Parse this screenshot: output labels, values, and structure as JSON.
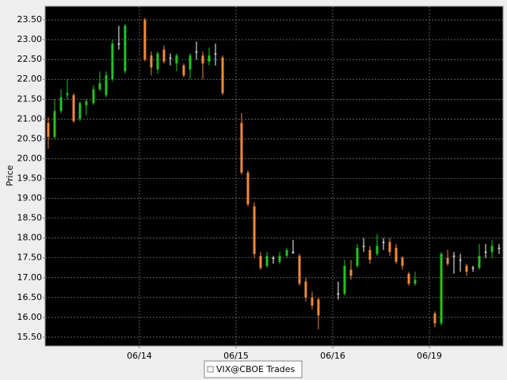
{
  "chart_data": {
    "type": "candlestick",
    "y_label": "Price",
    "series_name": "VIX@CBOE Trades",
    "up_color": "#22c322",
    "down_color": "#f08a3a",
    "flat_color": "#ffffff",
    "grid": true,
    "xlim": [
      -0.975,
      3.762
    ],
    "ylim": [
      15.28,
      23.84
    ],
    "xticks": [
      {
        "value": 0,
        "label": "06/14"
      },
      {
        "value": 1,
        "label": "06/15"
      },
      {
        "value": 2,
        "label": "06/16"
      },
      {
        "value": 3,
        "label": "06/19"
      }
    ],
    "yticks": [
      {
        "value": 15.5,
        "label": "15.50"
      },
      {
        "value": 16,
        "label": "16.00"
      },
      {
        "value": 16.5,
        "label": "16.50"
      },
      {
        "value": 17,
        "label": "17.00"
      },
      {
        "value": 17.5,
        "label": "17.50"
      },
      {
        "value": 18,
        "label": "18.00"
      },
      {
        "value": 18.5,
        "label": "18.50"
      },
      {
        "value": 19,
        "label": "19.00"
      },
      {
        "value": 19.5,
        "label": "19.50"
      },
      {
        "value": 20,
        "label": "20.00"
      },
      {
        "value": 20.5,
        "label": "20.50"
      },
      {
        "value": 21,
        "label": "21.00"
      },
      {
        "value": 21.5,
        "label": "21.50"
      },
      {
        "value": 22,
        "label": "22.00"
      },
      {
        "value": 22.5,
        "label": "22.50"
      },
      {
        "value": 23,
        "label": "23.00"
      },
      {
        "value": 23.5,
        "label": "23.50"
      }
    ],
    "x": [
      -0.943,
      -0.877,
      -0.811,
      -0.746,
      -0.68,
      -0.615,
      -0.549,
      -0.475,
      -0.41,
      -0.344,
      -0.279,
      -0.213,
      -0.148,
      0.057,
      0.123,
      0.189,
      0.254,
      0.32,
      0.385,
      0.459,
      0.525,
      0.59,
      0.656,
      0.721,
      0.787,
      0.861,
      1.057,
      1.123,
      1.189,
      1.254,
      1.32,
      1.385,
      1.451,
      1.525,
      1.59,
      1.656,
      1.721,
      1.787,
      1.852,
      2.057,
      2.123,
      2.189,
      2.254,
      2.32,
      2.385,
      2.459,
      2.525,
      2.59,
      2.656,
      2.721,
      2.787,
      2.852,
      3.057,
      3.123,
      3.189,
      3.254,
      3.32,
      3.385,
      3.451,
      3.516,
      3.582,
      3.648,
      3.721
    ],
    "open": [
      20.9,
      20.55,
      21.2,
      21.6,
      21.6,
      21.0,
      21.35,
      21.4,
      21.75,
      21.6,
      22.0,
      22.9,
      22.2,
      23.5,
      22.6,
      22.25,
      22.75,
      22.55,
      22.4,
      22.35,
      22.25,
      22.7,
      22.6,
      22.45,
      22.65,
      22.55,
      20.9,
      19.65,
      18.8,
      17.55,
      17.3,
      17.5,
      17.4,
      17.55,
      17.65,
      17.55,
      16.9,
      16.5,
      16.45,
      16.6,
      16.6,
      17.2,
      17.3,
      17.8,
      17.7,
      17.6,
      17.9,
      17.9,
      17.75,
      17.5,
      17.1,
      16.85,
      16.1,
      15.85,
      17.5,
      17.55,
      17.45,
      17.3,
      17.25,
      17.25,
      17.65,
      17.65,
      17.75
    ],
    "high": [
      21.05,
      21.5,
      21.75,
      22.0,
      21.65,
      21.45,
      21.5,
      21.85,
      22.2,
      22.2,
      23.0,
      23.35,
      23.4,
      23.55,
      22.7,
      22.7,
      22.85,
      22.65,
      22.65,
      22.4,
      22.65,
      22.95,
      22.7,
      22.8,
      22.9,
      22.6,
      21.15,
      19.7,
      18.9,
      17.65,
      17.65,
      17.55,
      17.65,
      17.75,
      17.95,
      17.6,
      17.0,
      16.65,
      16.5,
      16.9,
      17.45,
      17.45,
      17.85,
      18.0,
      17.8,
      18.1,
      18.0,
      18.0,
      17.85,
      17.55,
      17.15,
      17.15,
      16.15,
      17.65,
      17.7,
      17.65,
      17.6,
      17.35,
      17.3,
      17.85,
      17.85,
      17.95,
      17.85
    ],
    "low": [
      20.25,
      20.5,
      21.15,
      21.5,
      20.9,
      20.95,
      21.1,
      21.35,
      21.7,
      21.55,
      21.95,
      22.75,
      22.15,
      22.45,
      22.1,
      22.15,
      22.4,
      22.35,
      22.2,
      22.05,
      22.0,
      22.5,
      22.0,
      22.35,
      22.35,
      21.6,
      19.6,
      18.8,
      17.5,
      17.2,
      17.25,
      17.35,
      17.35,
      17.5,
      17.6,
      16.8,
      16.4,
      16.2,
      15.7,
      16.45,
      16.55,
      16.95,
      17.25,
      17.65,
      17.35,
      17.55,
      17.7,
      17.55,
      17.35,
      17.2,
      16.8,
      16.8,
      15.75,
      15.8,
      17.3,
      17.1,
      17.15,
      17.05,
      17.15,
      17.2,
      17.5,
      17.5,
      17.6
    ],
    "close": [
      20.55,
      21.2,
      21.55,
      21.65,
      20.95,
      21.4,
      21.45,
      21.75,
      21.9,
      22.1,
      22.9,
      22.9,
      23.35,
      22.5,
      22.3,
      22.65,
      22.45,
      22.55,
      22.6,
      22.1,
      22.6,
      22.7,
      22.4,
      22.6,
      22.65,
      21.65,
      19.65,
      18.85,
      17.6,
      17.25,
      17.55,
      17.5,
      17.55,
      17.7,
      17.65,
      16.85,
      16.5,
      16.3,
      16.05,
      16.6,
      17.3,
      17.05,
      17.75,
      17.8,
      17.45,
      17.8,
      17.9,
      17.65,
      17.4,
      17.3,
      16.85,
      16.95,
      15.85,
      17.6,
      17.35,
      17.55,
      17.45,
      17.15,
      17.25,
      17.55,
      17.65,
      17.8,
      17.75
    ]
  }
}
